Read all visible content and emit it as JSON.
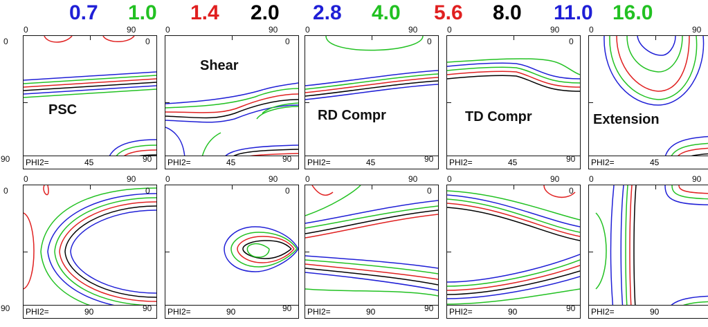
{
  "legend": {
    "levels": [
      {
        "value": "0.7",
        "color": "#1f1fd6"
      },
      {
        "value": "1.0",
        "color": "#22c122"
      },
      {
        "value": "1.4",
        "color": "#e02020"
      },
      {
        "value": "2.0",
        "color": "#000000"
      },
      {
        "value": "2.8",
        "color": "#1f1fd6"
      },
      {
        "value": "4.0",
        "color": "#22c122"
      },
      {
        "value": "5.6",
        "color": "#e02020"
      },
      {
        "value": "8.0",
        "color": "#000000"
      },
      {
        "value": "11.0",
        "color": "#1f1fd6"
      },
      {
        "value": "16.0",
        "color": "#22c122"
      }
    ]
  },
  "axis": {
    "top_min": "0",
    "top_max": "90",
    "left_min": "0",
    "left_max": "90"
  },
  "phi_label": "PHI2=",
  "rows": [
    {
      "phi2": "45",
      "panels": [
        {
          "title": "PSC"
        },
        {
          "title": "Shear"
        },
        {
          "title": "RD Compr"
        },
        {
          "title": "TD Compr"
        },
        {
          "title": "Extension"
        }
      ]
    },
    {
      "phi2": "90",
      "panels": [
        {
          "title": ""
        },
        {
          "title": ""
        },
        {
          "title": ""
        },
        {
          "title": ""
        },
        {
          "title": ""
        }
      ]
    }
  ],
  "contour_colors": {
    "blue": "#1f1fd6",
    "green": "#22c122",
    "red": "#e02020",
    "black": "#000000"
  }
}
